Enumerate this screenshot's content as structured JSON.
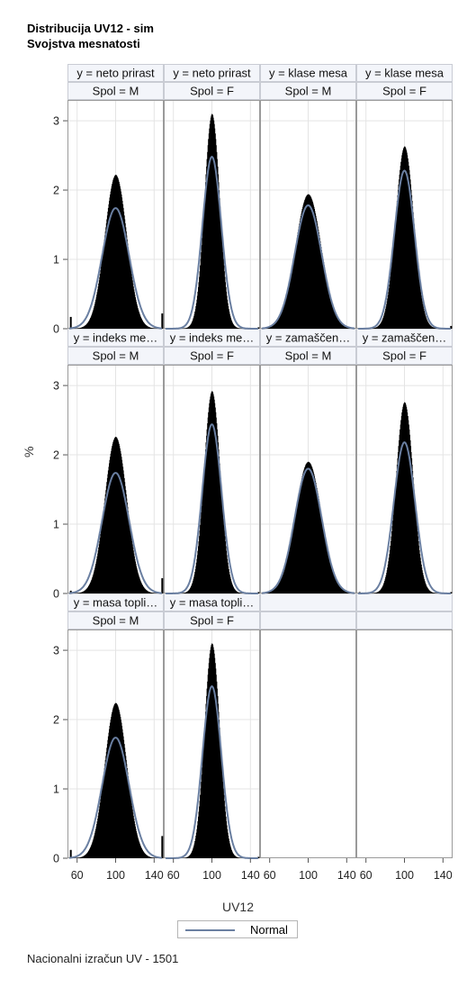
{
  "title_line1": "Distribucija UV12 - sim",
  "title_line2": "Svojstva mesnatosti",
  "footnote": "Nacionalni izračun UV - 1501",
  "colors": {
    "bars": "#000000",
    "normal_curve": "#6a7fa1",
    "header_bg": "#f3f5fa"
  },
  "chart_data": {
    "type": "bar",
    "subtype": "histogram-panel-grid",
    "xlabel": "UV12",
    "ylabel": "%",
    "xlim": [
      50,
      150
    ],
    "ylim": [
      0,
      3.3
    ],
    "x_ticks": [
      60,
      100,
      140
    ],
    "y_ticks": [
      0,
      1,
      2,
      3
    ],
    "grid": true,
    "legend": {
      "position": "bottom-center",
      "entries": [
        "Normal"
      ]
    },
    "panels": [
      {
        "row": 0,
        "col": 0,
        "y_header": "y = neto prirast",
        "spol_header": "Spol = M",
        "peak": 2.22,
        "normal_peak": 1.74,
        "sd_hist": 11.5,
        "sd_normal": 14.0,
        "tails": [
          0.17,
          0.22
        ]
      },
      {
        "row": 0,
        "col": 1,
        "y_header": "y = neto prirast",
        "spol_header": "Spol = F",
        "peak": 3.1,
        "normal_peak": 2.48,
        "sd_hist": 8.0,
        "sd_normal": 9.8,
        "tails": [
          0,
          0.02
        ]
      },
      {
        "row": 0,
        "col": 2,
        "y_header": "y = klase mesa",
        "spol_header": "Spol = M",
        "peak": 1.94,
        "normal_peak": 1.78,
        "sd_hist": 13.5,
        "sd_normal": 14.0,
        "tails": [
          0,
          0
        ]
      },
      {
        "row": 0,
        "col": 3,
        "y_header": "y = klase mesa",
        "spol_header": "Spol = F",
        "peak": 2.63,
        "normal_peak": 2.28,
        "sd_hist": 9.5,
        "sd_normal": 10.5,
        "tails": [
          0,
          0.04
        ]
      },
      {
        "row": 1,
        "col": 0,
        "y_header": "y = indeks me…",
        "spol_header": "Spol = M",
        "peak": 2.26,
        "normal_peak": 1.74,
        "sd_hist": 11.5,
        "sd_normal": 14.0,
        "tails": [
          0.04,
          0.22
        ]
      },
      {
        "row": 1,
        "col": 1,
        "y_header": "y = indeks me…",
        "spol_header": "Spol = F",
        "peak": 2.92,
        "normal_peak": 2.44,
        "sd_hist": 8.5,
        "sd_normal": 10.0,
        "tails": [
          0,
          0.02
        ]
      },
      {
        "row": 1,
        "col": 2,
        "y_header": "y = zamaščen…",
        "spol_header": "Spol = M",
        "peak": 1.9,
        "normal_peak": 1.8,
        "sd_hist": 13.5,
        "sd_normal": 14.0,
        "tails": [
          0,
          0
        ]
      },
      {
        "row": 1,
        "col": 3,
        "y_header": "y = zamaščen…",
        "spol_header": "Spol = F",
        "peak": 2.76,
        "normal_peak": 2.18,
        "sd_hist": 9.0,
        "sd_normal": 11.0,
        "tails": [
          0.02,
          0.02
        ]
      },
      {
        "row": 2,
        "col": 0,
        "y_header": "y = masa topli…",
        "spol_header": "Spol = M",
        "peak": 2.24,
        "normal_peak": 1.74,
        "sd_hist": 11.5,
        "sd_normal": 14.0,
        "tails": [
          0.12,
          0.32
        ]
      },
      {
        "row": 2,
        "col": 1,
        "y_header": "y = masa topli…",
        "spol_header": "Spol = F",
        "peak": 3.1,
        "normal_peak": 2.48,
        "sd_hist": 8.0,
        "sd_normal": 9.8,
        "tails": [
          0,
          0.02
        ]
      }
    ]
  }
}
